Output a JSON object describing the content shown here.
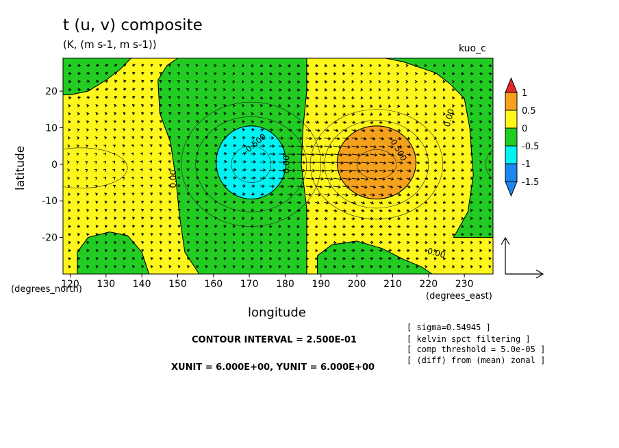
{
  "title": "t (u, v) composite",
  "subtitle": "(K, (m s-1, m s-1))",
  "run_label": "kuo_c",
  "notes": [
    "[ sigma=0.54945 ]",
    "[ kelvin spct filtering ]",
    "[ comp threshold = 5.0e-05 ]",
    "[ (diff) from (mean) zonal ]"
  ],
  "contour_interval_text": "CONTOUR INTERVAL = 2.500E-01",
  "unit_text": "XUNIT = 6.000E+00, YUNIT = 6.000E+00",
  "chart_data": {
    "type": "heatmap",
    "subtype": "filled contour with vector arrows",
    "xlabel": "longitude",
    "ylabel": "latitude",
    "x_units_label": "(degrees_east)",
    "y_units_label": "(degrees_north)",
    "xlim": [
      118,
      238
    ],
    "ylim": [
      -30,
      29
    ],
    "x_ticks": [
      120,
      130,
      140,
      150,
      160,
      170,
      180,
      190,
      200,
      210,
      220,
      230
    ],
    "y_ticks": [
      -20,
      -10,
      0,
      10,
      20
    ],
    "colorbar": {
      "levels": [
        -1.5,
        -1,
        -0.5,
        0,
        0.5,
        1
      ],
      "labels": [
        "1",
        "0.5",
        "0",
        "-0.5",
        "-1",
        "-1.5"
      ],
      "colors": [
        "#e8262a",
        "#f5a11c",
        "#fff71b",
        "#22cc22",
        "#00f2f2",
        "#1a88ee",
        "#2040d0"
      ]
    },
    "features": [
      {
        "name": "cold anomaly",
        "center_lon": 170,
        "center_lat": 0,
        "min_value": -1.0,
        "shading": "-1 to -0.5"
      },
      {
        "name": "warm anomaly",
        "center_lon": 205,
        "center_lat": 0,
        "max_value": 0.75,
        "shading": "0.5 to 1"
      }
    ],
    "contour_labels": [
      "-0.500",
      "0.500",
      "0.00",
      "0.00",
      "0.00",
      "0.00"
    ],
    "vectors": {
      "max_zonal_wind_region_lon": [
        170,
        215
      ],
      "direction": "eastward",
      "reference_unit": 6.0
    }
  }
}
